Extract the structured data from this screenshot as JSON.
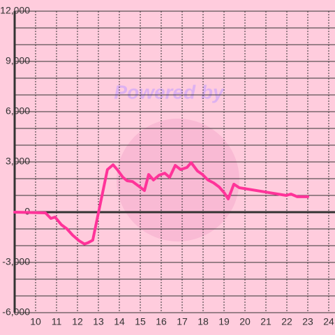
{
  "chart_data": {
    "type": "line",
    "watermark": "Powered by",
    "x": [
      9,
      10.47,
      10.73,
      10.93,
      11.23,
      11.5,
      11.77,
      12.07,
      12.33,
      12.5,
      12.73,
      13.07,
      13.43,
      13.7,
      13.9,
      14.17,
      14.37,
      14.63,
      14.9,
      15.2,
      15.4,
      15.63,
      15.9,
      16.17,
      16.4,
      16.67,
      16.93,
      17.23,
      17.43,
      17.73,
      17.97,
      18.23,
      18.5,
      18.77,
      19,
      19.2,
      19.47,
      19.73,
      21.97,
      22.2,
      22.5,
      23
    ],
    "values": [
      0,
      -40,
      -375,
      -290,
      -750,
      -1000,
      -1375,
      -1700,
      -1900,
      -1830,
      -1670,
      375,
      2540,
      2830,
      2540,
      2080,
      1875,
      1830,
      1580,
      1290,
      2250,
      1920,
      2210,
      2330,
      2080,
      2790,
      2540,
      2670,
      2960,
      2460,
      2250,
      1920,
      1750,
      1500,
      1170,
      790,
      1670,
      1460,
      1000,
      1080,
      920,
      920
    ],
    "color": "#ff3399",
    "xlim": [
      9,
      24.3
    ],
    "ylim": [
      -6000,
      12000
    ],
    "xticks": [
      10,
      11,
      12,
      13,
      14,
      15,
      16,
      17,
      18,
      19,
      20,
      21,
      22,
      23,
      24
    ],
    "yticks": [
      {
        "value": -6000,
        "label": "-6,000"
      },
      {
        "value": -3000,
        "label": "-3,000"
      },
      0,
      {
        "value": 3000,
        "label": "3,000"
      },
      {
        "value": 6000,
        "label": "6,000"
      },
      {
        "value": 9000,
        "label": "9,000"
      },
      {
        "value": 12000,
        "label": "12,000"
      }
    ],
    "y_minor_ticks": [
      -5000,
      -4000,
      -2000,
      -1000,
      1000,
      2000,
      4000,
      5000,
      7000,
      8000,
      10000,
      11000
    ],
    "grid": true
  }
}
